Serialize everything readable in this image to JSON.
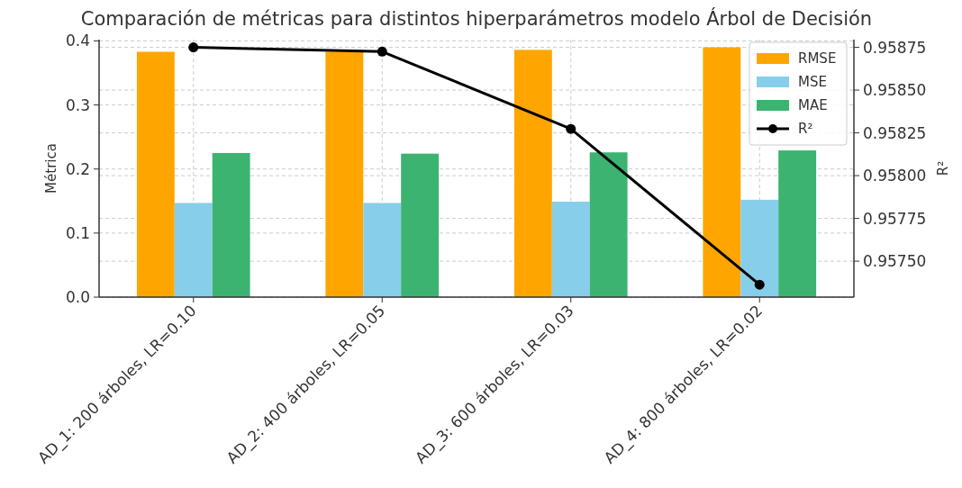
{
  "chart_data": {
    "type": "bar",
    "title": "Comparación de métricas para distintos hiperparámetros modelo Árbol de Decisión",
    "ylabel": "Métrica",
    "y2label": "R²",
    "categories": [
      "AD_1: 200 árboles, LR=0.10",
      "AD_2: 400 árboles, LR=0.05",
      "AD_3: 600 árboles, LR=0.03",
      "AD_4: 800 árboles, LR=0.02"
    ],
    "series": [
      {
        "name": "RMSE",
        "color": "#ffa500",
        "values": [
          0.383,
          0.383,
          0.386,
          0.39
        ]
      },
      {
        "name": "MSE",
        "color": "#87ceeb",
        "values": [
          0.147,
          0.147,
          0.149,
          0.152
        ]
      },
      {
        "name": "MAE",
        "color": "#3cb371",
        "values": [
          0.225,
          0.224,
          0.226,
          0.229
        ]
      },
      {
        "name": "R²",
        "type": "line",
        "axis": "y2",
        "color": "#000000",
        "marker": "circle",
        "values": [
          0.95875,
          0.958725,
          0.958273,
          0.957363
        ]
      }
    ],
    "ylim": [
      0,
      0.402
    ],
    "yticks": [
      {
        "value": 0,
        "label": "0.0"
      },
      {
        "value": 0.1,
        "label": "0.1"
      },
      {
        "value": 0.2,
        "label": "0.2"
      },
      {
        "value": 0.3,
        "label": "0.3"
      },
      {
        "value": 0.4,
        "label": "0.4"
      }
    ],
    "y2lim": [
      0.95729,
      0.958795
    ],
    "y2ticks": [
      {
        "value": 0.9575,
        "label": "0.95750"
      },
      {
        "value": 0.95775,
        "label": "0.95775"
      },
      {
        "value": 0.958,
        "label": "0.95800"
      },
      {
        "value": 0.95825,
        "label": "0.95825"
      },
      {
        "value": 0.9585,
        "label": "0.95850"
      },
      {
        "value": 0.95875,
        "label": "0.95875"
      }
    ],
    "grid": true,
    "legend": "top right"
  }
}
